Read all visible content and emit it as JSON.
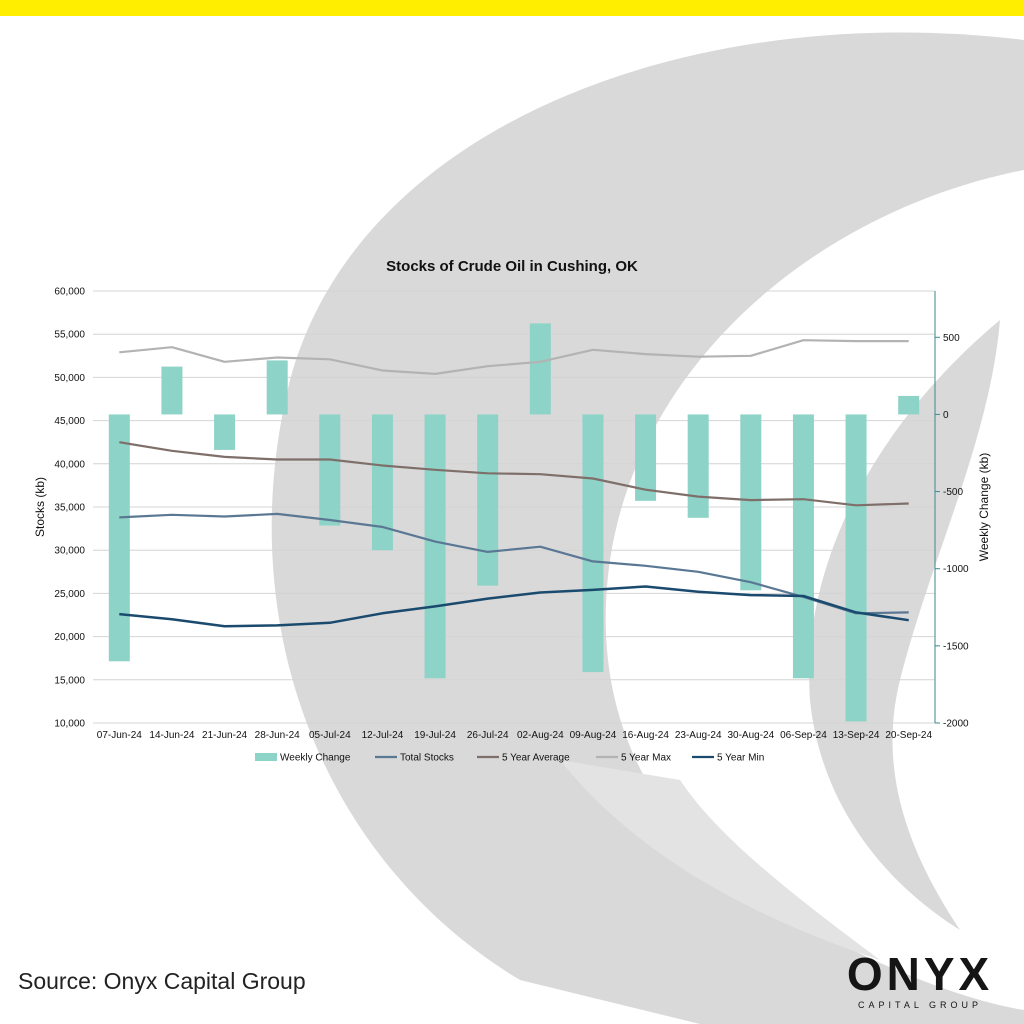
{
  "brand": {
    "accent_color": "#FFEE00",
    "logo_text": "ONYX",
    "logo_subtext": "CAPITAL GROUP"
  },
  "source_text": "Source: Onyx Capital Group",
  "chart_data": {
    "type": "bar",
    "title": "Stocks of Crude Oil in Cushing, OK",
    "categories": [
      "07-Jun-24",
      "14-Jun-24",
      "21-Jun-24",
      "28-Jun-24",
      "05-Jul-24",
      "12-Jul-24",
      "19-Jul-24",
      "26-Jul-24",
      "02-Aug-24",
      "09-Aug-24",
      "16-Aug-24",
      "23-Aug-24",
      "30-Aug-24",
      "06-Sep-24",
      "13-Sep-24",
      "20-Sep-24"
    ],
    "ylabel": "Stocks (kb)",
    "y2label": "Weekly Change (kb)",
    "ylim": [
      10000,
      60000
    ],
    "y2lim": [
      -2000,
      800
    ],
    "yticks": [
      10000,
      15000,
      20000,
      25000,
      30000,
      35000,
      40000,
      45000,
      50000,
      55000,
      60000
    ],
    "ytick_labels": [
      "10,000",
      "15,000",
      "20,000",
      "25,000",
      "30,000",
      "35,000",
      "40,000",
      "45,000",
      "50,000",
      "55,000",
      "60,000"
    ],
    "y2ticks": [
      -2000,
      -1500,
      -1000,
      -500,
      0,
      500
    ],
    "y2tick_labels": [
      "-2000",
      "-1500",
      "-1000",
      "-500",
      "0",
      "500"
    ],
    "grid": true,
    "legend_position": "bottom",
    "series": [
      {
        "name": "Weekly Change",
        "kind": "bar",
        "axis": "right",
        "color": "#8ED3C7",
        "values": [
          -1600,
          310,
          -230,
          350,
          -720,
          -880,
          -1710,
          -1110,
          590,
          -1670,
          -560,
          -670,
          -1140,
          -1710,
          -1990,
          120
        ]
      },
      {
        "name": "Total Stocks",
        "kind": "line",
        "axis": "left",
        "color": "#5A7894",
        "values": [
          33800,
          34100,
          33900,
          34200,
          33500,
          32700,
          31000,
          29800,
          30400,
          28700,
          28200,
          27500,
          26300,
          24600,
          22700,
          22800
        ]
      },
      {
        "name": "5 Year Average",
        "kind": "line",
        "axis": "left",
        "color": "#7F6F6A",
        "values": [
          42500,
          41500,
          40800,
          40500,
          40500,
          39800,
          39300,
          38900,
          38800,
          38300,
          37000,
          36200,
          35800,
          35900,
          35200,
          35400
        ]
      },
      {
        "name": "5 Year Max",
        "kind": "line",
        "axis": "left",
        "color": "#B3B3B3",
        "values": [
          52900,
          53500,
          51800,
          52300,
          52100,
          50800,
          50400,
          51300,
          51800,
          53200,
          52700,
          52400,
          52500,
          54300,
          54200,
          54200
        ]
      },
      {
        "name": "5 Year Min",
        "kind": "line",
        "axis": "left",
        "color": "#1A4A6E",
        "values": [
          22600,
          22000,
          21200,
          21300,
          21600,
          22700,
          23500,
          24400,
          25100,
          25400,
          25800,
          25200,
          24800,
          24700,
          22800,
          21900
        ]
      }
    ]
  }
}
